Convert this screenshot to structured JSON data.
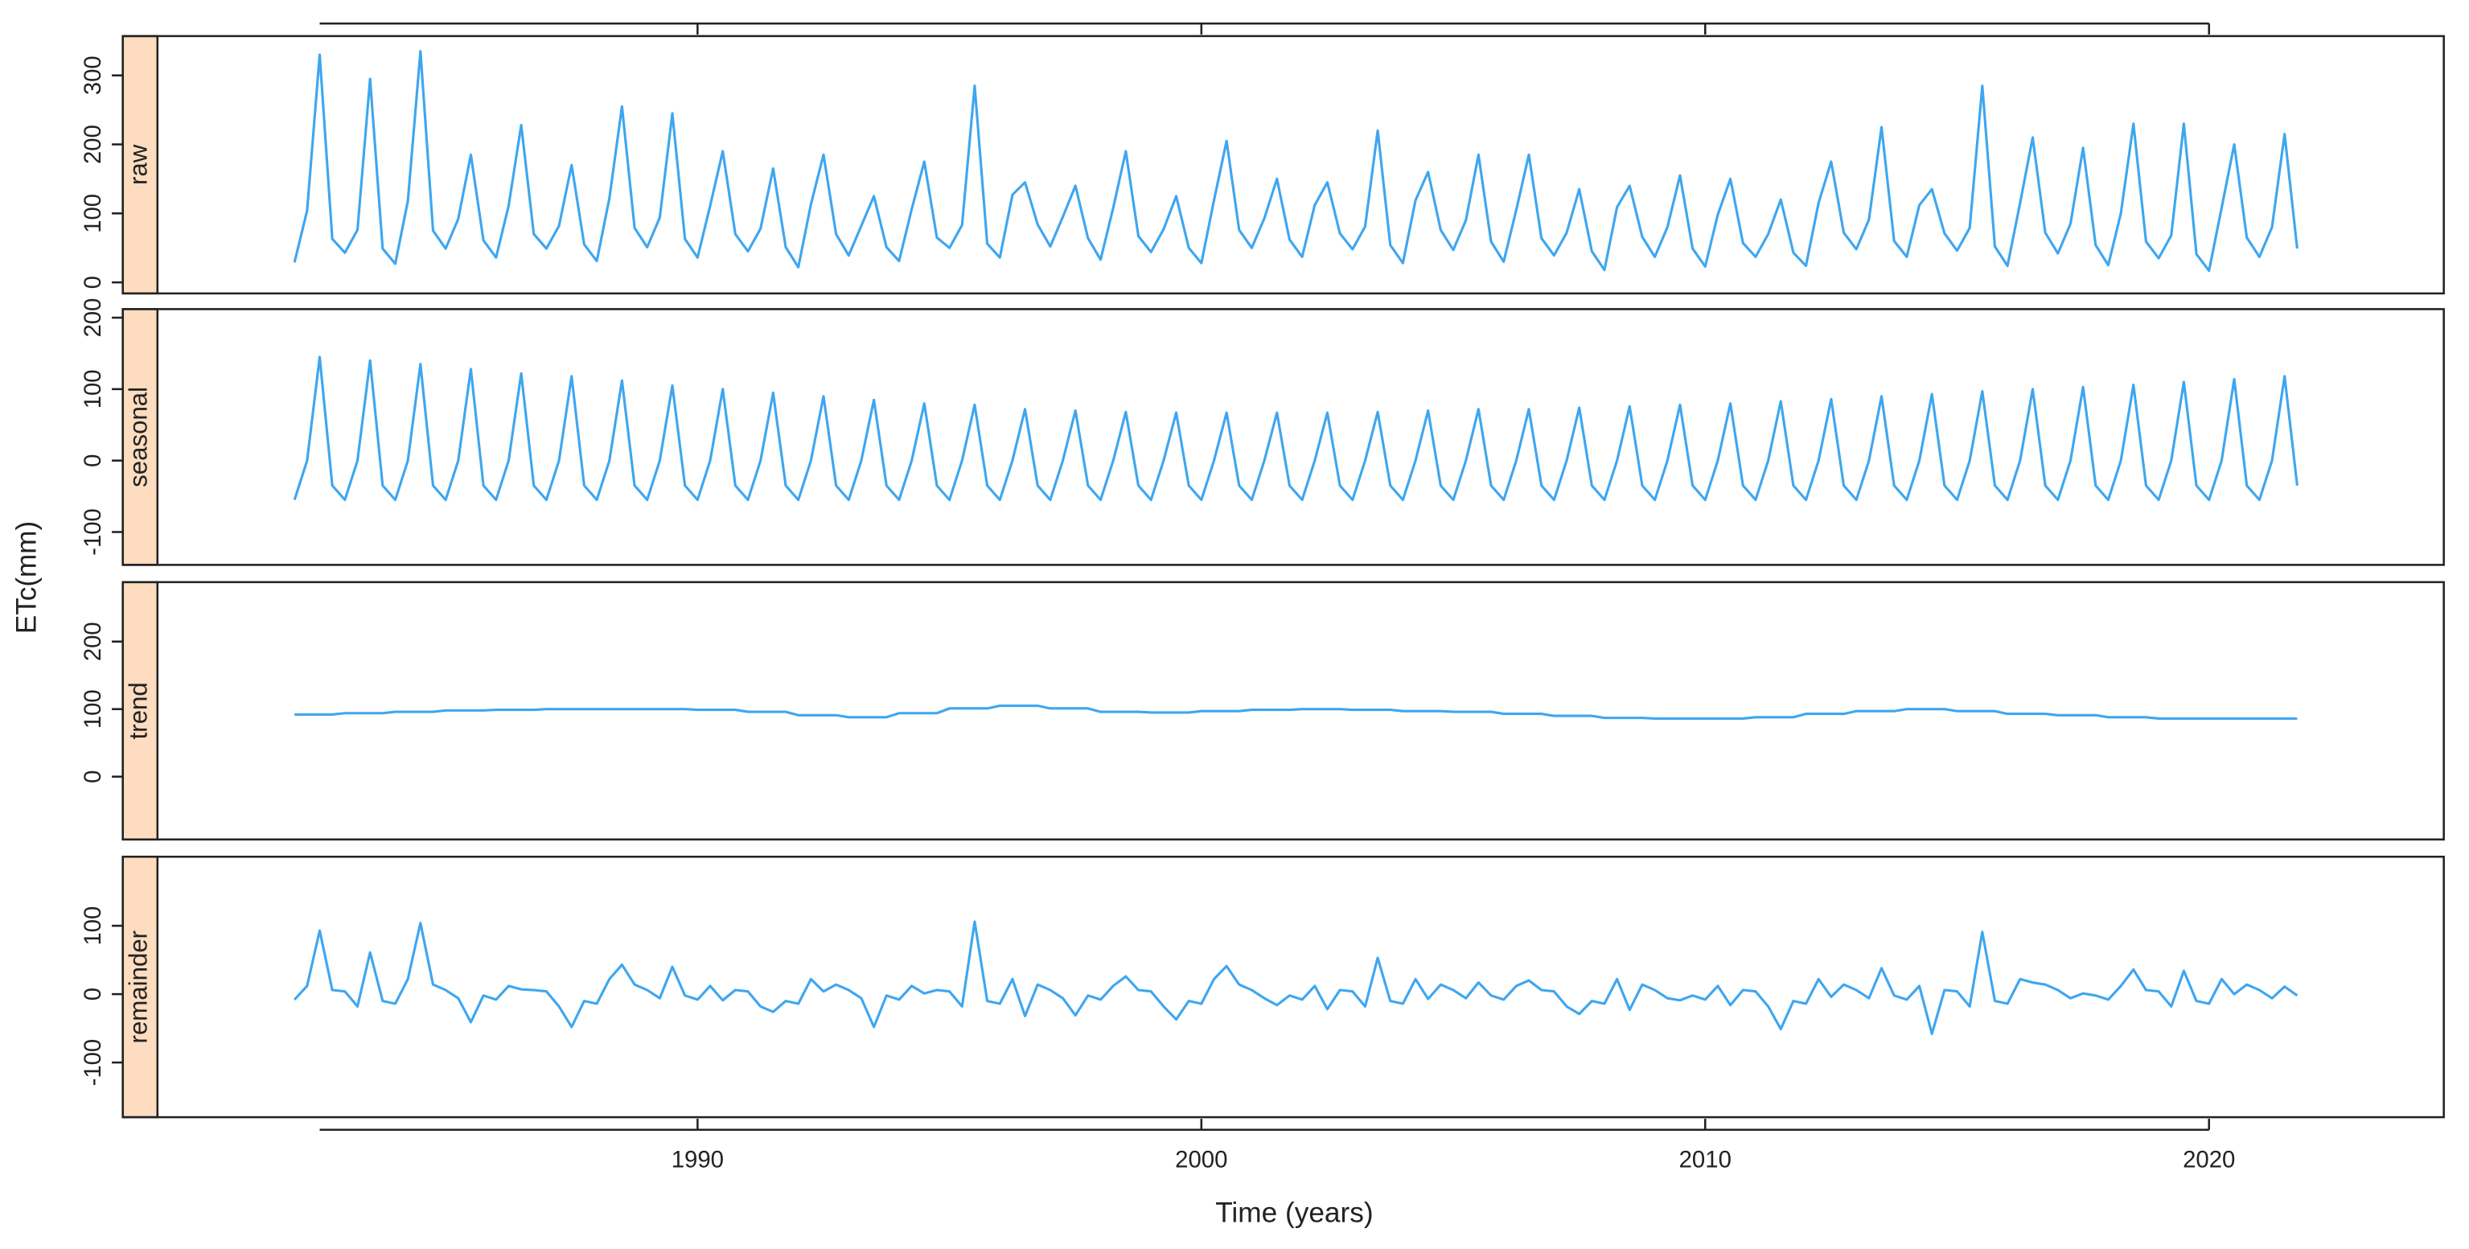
{
  "chart_data": {
    "type": "line",
    "xlabel": "Time (years)",
    "ylabel": "ETc(mm)",
    "xlim": [
      1979.28,
      2024.66
    ],
    "xticks": [
      1990,
      2000,
      2010,
      2020
    ],
    "x": [
      1982,
      1982.25,
      1982.5,
      1982.75,
      1983,
      1983.25,
      1983.5,
      1983.75,
      1984,
      1984.25,
      1984.5,
      1984.75,
      1985,
      1985.25,
      1985.5,
      1985.75,
      1986,
      1986.25,
      1986.5,
      1986.75,
      1987,
      1987.25,
      1987.5,
      1987.75,
      1988,
      1988.25,
      1988.5,
      1988.75,
      1989,
      1989.25,
      1989.5,
      1989.75,
      1990,
      1990.25,
      1990.5,
      1990.75,
      1991,
      1991.25,
      1991.5,
      1991.75,
      1992,
      1992.25,
      1992.5,
      1992.75,
      1993,
      1993.25,
      1993.5,
      1993.75,
      1994,
      1994.25,
      1994.5,
      1994.75,
      1995,
      1995.25,
      1995.5,
      1995.75,
      1996,
      1996.25,
      1996.5,
      1996.75,
      1997,
      1997.25,
      1997.5,
      1997.75,
      1998,
      1998.25,
      1998.5,
      1998.75,
      1999,
      1999.25,
      1999.5,
      1999.75,
      2000,
      2000.25,
      2000.5,
      2000.75,
      2001,
      2001.25,
      2001.5,
      2001.75,
      2002,
      2002.25,
      2002.5,
      2002.75,
      2003,
      2003.25,
      2003.5,
      2003.75,
      2004,
      2004.25,
      2004.5,
      2004.75,
      2005,
      2005.25,
      2005.5,
      2005.75,
      2006,
      2006.25,
      2006.5,
      2006.75,
      2007,
      2007.25,
      2007.5,
      2007.75,
      2008,
      2008.25,
      2008.5,
      2008.75,
      2009,
      2009.25,
      2009.5,
      2009.75,
      2010,
      2010.25,
      2010.5,
      2010.75,
      2011,
      2011.25,
      2011.5,
      2011.75,
      2012,
      2012.25,
      2012.5,
      2012.75,
      2013,
      2013.25,
      2013.5,
      2013.75,
      2014,
      2014.25,
      2014.5,
      2014.75,
      2015,
      2015.25,
      2015.5,
      2015.75,
      2016,
      2016.25,
      2016.5,
      2016.75,
      2017,
      2017.25,
      2017.5,
      2017.75,
      2018,
      2018.25,
      2018.5,
      2018.75,
      2019,
      2019.25,
      2019.5,
      2019.75,
      2020,
      2020.25,
      2020.5,
      2020.75,
      2021,
      2021.25,
      2021.5,
      2021.75
    ],
    "series": [
      {
        "name": "raw",
        "color": "#3ea6f0",
        "ylim": [
          -16,
          357
        ],
        "yticks": [
          0,
          100,
          200,
          300
        ],
        "values": [
          29,
          104,
          330,
          63,
          43,
          76,
          295,
          49,
          27,
          118,
          335,
          75,
          49,
          92,
          185,
          61,
          36,
          111,
          228,
          70,
          49,
          82,
          170,
          55,
          31,
          122,
          255,
          79,
          51,
          94,
          245,
          63,
          36,
          111,
          190,
          70,
          45,
          78,
          165,
          51,
          22,
          113,
          185,
          70,
          39,
          82,
          125,
          51,
          31,
          106,
          175,
          65,
          50,
          83,
          285,
          56,
          36,
          127,
          145,
          84,
          52,
          95,
          140,
          64,
          33,
          108,
          190,
          67,
          44,
          77,
          125,
          50,
          28,
          119,
          205,
          76,
          50,
          93,
          150,
          62,
          37,
          112,
          145,
          71,
          48,
          81,
          220,
          54,
          28,
          119,
          160,
          76,
          47,
          90,
          185,
          59,
          30,
          105,
          185,
          64,
          39,
          72,
          135,
          45,
          18,
          109,
          140,
          66,
          37,
          80,
          155,
          49,
          23,
          98,
          150,
          57,
          37,
          70,
          120,
          43,
          24,
          115,
          175,
          72,
          48,
          91,
          225,
          60,
          37,
          112,
          135,
          71,
          46,
          79,
          285,
          52,
          24,
          115,
          210,
          72,
          42,
          85,
          195,
          54,
          25,
          100,
          230,
          59,
          35,
          68,
          230,
          41,
          17,
          108,
          200,
          65,
          37,
          80,
          215,
          49
        ]
      },
      {
        "name": "seasonal",
        "color": "#3ea6f0",
        "ylim": [
          -146,
          212
        ],
        "yticks": [
          -100,
          0,
          100,
          200
        ],
        "values": [
          -55,
          0,
          145,
          -35,
          -55,
          0,
          140,
          -35,
          -55,
          0,
          135,
          -35,
          -55,
          0,
          128,
          -35,
          -55,
          0,
          122,
          -35,
          -55,
          0,
          118,
          -35,
          -55,
          0,
          112,
          -35,
          -55,
          0,
          105,
          -35,
          -55,
          0,
          100,
          -35,
          -55,
          0,
          95,
          -35,
          -55,
          0,
          90,
          -35,
          -55,
          0,
          85,
          -35,
          -55,
          0,
          80,
          -35,
          -55,
          0,
          78,
          -35,
          -55,
          0,
          72,
          -35,
          -55,
          0,
          70,
          -35,
          -55,
          0,
          68,
          -35,
          -55,
          0,
          67,
          -35,
          -55,
          0,
          67,
          -35,
          -55,
          0,
          67,
          -35,
          -55,
          0,
          67,
          -35,
          -55,
          0,
          68,
          -35,
          -55,
          0,
          70,
          -35,
          -55,
          0,
          72,
          -35,
          -55,
          0,
          72,
          -35,
          -55,
          0,
          74,
          -35,
          -55,
          0,
          76,
          -35,
          -55,
          0,
          78,
          -35,
          -55,
          0,
          80,
          -35,
          -55,
          0,
          83,
          -35,
          -55,
          0,
          86,
          -35,
          -55,
          0,
          90,
          -35,
          -55,
          0,
          93,
          -35,
          -55,
          0,
          97,
          -35,
          -55,
          0,
          100,
          -35,
          -55,
          0,
          103,
          -35,
          -55,
          0,
          106,
          -35,
          -55,
          0,
          110,
          -35,
          -55,
          0,
          114,
          -35,
          -55,
          0,
          118,
          -35
        ]
      },
      {
        "name": "trend",
        "color": "#3ea6f0",
        "ylim": [
          -93,
          288
        ],
        "yticks": [
          0,
          100,
          200
        ],
        "values": [
          92,
          92,
          92,
          92,
          94,
          94,
          94,
          94,
          96,
          96,
          96,
          96,
          98,
          98,
          98,
          98,
          99,
          99,
          99,
          99,
          100,
          100,
          100,
          100,
          100,
          100,
          100,
          100,
          100,
          100,
          100,
          100,
          99,
          99,
          99,
          99,
          96,
          96,
          96,
          96,
          91,
          91,
          91,
          91,
          88,
          88,
          88,
          88,
          94,
          94,
          94,
          94,
          101,
          101,
          101,
          101,
          105,
          105,
          105,
          105,
          101,
          101,
          101,
          101,
          96,
          96,
          96,
          96,
          95,
          95,
          95,
          95,
          97,
          97,
          97,
          97,
          99,
          99,
          99,
          99,
          100,
          100,
          100,
          100,
          99,
          99,
          99,
          99,
          97,
          97,
          97,
          97,
          96,
          96,
          96,
          96,
          93,
          93,
          93,
          93,
          90,
          90,
          90,
          90,
          87,
          87,
          87,
          87,
          86,
          86,
          86,
          86,
          86,
          86,
          86,
          86,
          88,
          88,
          88,
          88,
          93,
          93,
          93,
          93,
          97,
          97,
          97,
          97,
          100,
          100,
          100,
          100,
          97,
          97,
          97,
          97,
          93,
          93,
          93,
          93,
          91,
          91,
          91,
          91,
          88,
          88,
          88,
          88,
          86,
          86,
          86,
          86,
          86,
          86,
          86,
          86,
          86,
          86,
          86,
          86
        ]
      },
      {
        "name": "remainder",
        "color": "#3ea6f0",
        "ylim": [
          -180,
          201
        ],
        "yticks": [
          -100,
          0,
          100
        ],
        "values": [
          -8,
          12,
          93,
          6,
          4,
          -18,
          61,
          -10,
          -14,
          22,
          104,
          14,
          6,
          -6,
          -41,
          -2,
          -8,
          12,
          7,
          6,
          4,
          -18,
          -48,
          -10,
          -14,
          22,
          43,
          14,
          6,
          -6,
          40,
          -2,
          -8,
          12,
          -9,
          6,
          4,
          -18,
          -26,
          -10,
          -14,
          22,
          4,
          14,
          6,
          -6,
          -48,
          -2,
          -8,
          12,
          1,
          6,
          4,
          -18,
          106,
          -10,
          -14,
          22,
          -32,
          14,
          6,
          -6,
          -31,
          -2,
          -8,
          12,
          26,
          6,
          4,
          -18,
          -37,
          -10,
          -14,
          22,
          41,
          14,
          6,
          -6,
          -16,
          -2,
          -8,
          12,
          -22,
          6,
          4,
          -18,
          53,
          -10,
          -14,
          22,
          -7,
          14,
          6,
          -6,
          17,
          -2,
          -8,
          12,
          20,
          6,
          4,
          -18,
          -29,
          -10,
          -14,
          22,
          -23,
          14,
          6,
          -6,
          -9,
          -2,
          -8,
          12,
          -16,
          6,
          4,
          -18,
          -51,
          -10,
          -14,
          22,
          -4,
          14,
          6,
          -6,
          38,
          -2,
          -8,
          12,
          -58,
          6,
          4,
          -18,
          91,
          -10,
          -14,
          22,
          17,
          14,
          6,
          -6,
          1,
          -2,
          -8,
          12,
          36,
          6,
          4,
          -18,
          34,
          -10,
          -14,
          22,
          0,
          14,
          6,
          -6,
          11,
          -2
        ]
      }
    ]
  }
}
